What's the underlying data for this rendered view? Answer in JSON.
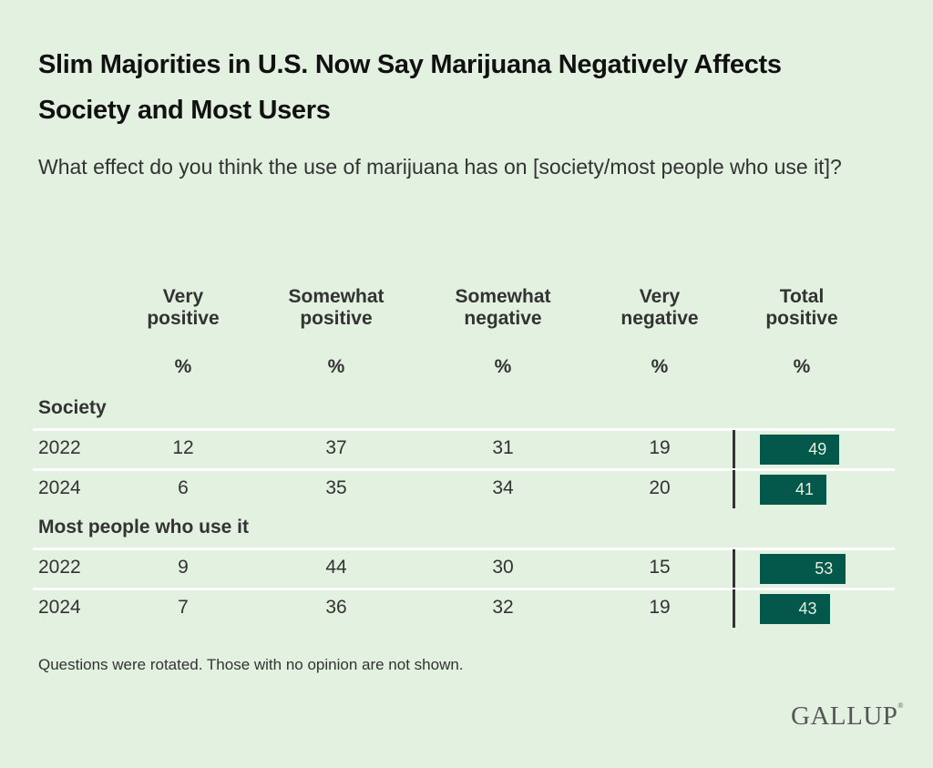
{
  "title": "Slim Majorities in U.S. Now Say Marijuana Negatively Affects Society and Most Users",
  "subtitle": "What effect do you think the use of marijuana has on [society/most people who use it]?",
  "columns": [
    {
      "line1": "Very",
      "line2": "positive",
      "unit": "%"
    },
    {
      "line1": "Somewhat",
      "line2": "positive",
      "unit": "%"
    },
    {
      "line1": "Somewhat",
      "line2": "negative",
      "unit": "%"
    },
    {
      "line1": "Very",
      "line2": "negative",
      "unit": "%"
    },
    {
      "line1": "Total",
      "line2": "positive",
      "unit": "%"
    }
  ],
  "note": "Questions were rotated. Those with no opinion are not shown.",
  "logo": "GALLUP",
  "colors": {
    "bar": "#03574b",
    "background": "#e3f1e0"
  },
  "chart_data": {
    "type": "table",
    "title": "Slim Majorities in U.S. Now Say Marijuana Negatively Affects Society and Most Users",
    "columns": [
      "Very positive %",
      "Somewhat positive %",
      "Somewhat negative %",
      "Very negative %",
      "Total positive %"
    ],
    "groups": [
      {
        "name": "Society",
        "rows": [
          {
            "year": "2022",
            "values": [
              12,
              37,
              31,
              19
            ],
            "total_positive": 49
          },
          {
            "year": "2024",
            "values": [
              6,
              35,
              34,
              20
            ],
            "total_positive": 41
          }
        ]
      },
      {
        "name": "Most people who use it",
        "rows": [
          {
            "year": "2022",
            "values": [
              9,
              44,
              30,
              15
            ],
            "total_positive": 53
          },
          {
            "year": "2024",
            "values": [
              7,
              36,
              32,
              19
            ],
            "total_positive": 43
          }
        ]
      }
    ]
  }
}
